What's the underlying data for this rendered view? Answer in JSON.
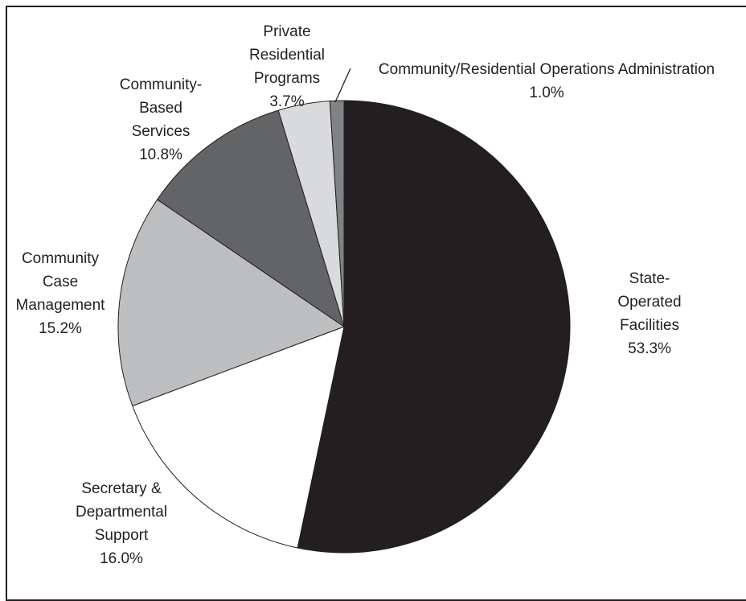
{
  "chart_data": {
    "type": "pie",
    "title": "",
    "start": "12 o'clock, clockwise",
    "slices": [
      {
        "name": "State-Operated Facilities",
        "label_lines": [
          "State-",
          "Operated",
          "Facilities"
        ],
        "value": 53.3,
        "value_label": "53.3%",
        "color": "#231f20"
      },
      {
        "name": "Secretary & Departmental Support",
        "label_lines": [
          "Secretary &",
          "Departmental",
          "Support"
        ],
        "value": 16.0,
        "value_label": "16.0%",
        "color": "#ffffff"
      },
      {
        "name": "Community Case Management",
        "label_lines": [
          "Community",
          "Case",
          "Management"
        ],
        "value": 15.2,
        "value_label": "15.2%",
        "color": "#bcbec0"
      },
      {
        "name": "Community-Based Services",
        "label_lines": [
          "Community-",
          "Based",
          "Services"
        ],
        "value": 10.8,
        "value_label": "10.8%",
        "color": "#636466"
      },
      {
        "name": "Private Residential Programs",
        "label_lines": [
          "Private",
          "Residential",
          "Programs"
        ],
        "value": 3.7,
        "value_label": "3.7%",
        "color": "#d9dadb"
      },
      {
        "name": "Community/Residential Operations Administration",
        "label_lines": [
          "Community/Residential Operations Administration"
        ],
        "value": 1.0,
        "value_label": "1.0%",
        "color": "#808285"
      }
    ]
  }
}
